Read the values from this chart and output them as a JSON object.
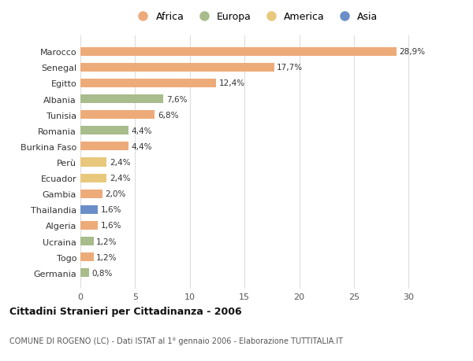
{
  "countries": [
    "Germania",
    "Togo",
    "Ucraina",
    "Algeria",
    "Thailandia",
    "Gambia",
    "Ecuador",
    "Perù",
    "Burkina Faso",
    "Romania",
    "Tunisia",
    "Albania",
    "Egitto",
    "Senegal",
    "Marocco"
  ],
  "values": [
    0.8,
    1.2,
    1.2,
    1.6,
    1.6,
    2.0,
    2.4,
    2.4,
    4.4,
    4.4,
    6.8,
    7.6,
    12.4,
    17.7,
    28.9
  ],
  "labels": [
    "0,8%",
    "1,2%",
    "1,2%",
    "1,6%",
    "1,6%",
    "2,0%",
    "2,4%",
    "2,4%",
    "4,4%",
    "4,4%",
    "6,8%",
    "7,6%",
    "12,4%",
    "17,7%",
    "28,9%"
  ],
  "continents": [
    "Europa",
    "Africa",
    "Europa",
    "Africa",
    "Asia",
    "Africa",
    "America",
    "America",
    "Africa",
    "Europa",
    "Africa",
    "Europa",
    "Africa",
    "Africa",
    "Africa"
  ],
  "colors": {
    "Africa": "#EDAB7A",
    "Europa": "#A8BC8C",
    "America": "#E8C87C",
    "Asia": "#6A8FC8"
  },
  "legend_order": [
    "Africa",
    "Europa",
    "America",
    "Asia"
  ],
  "title": "Cittadini Stranieri per Cittadinanza - 2006",
  "subtitle": "COMUNE DI ROGENO (LC) - Dati ISTAT al 1° gennaio 2006 - Elaborazione TUTTITALIA.IT",
  "xlim": [
    0,
    32
  ],
  "xticks": [
    0,
    5,
    10,
    15,
    20,
    25,
    30
  ],
  "bg_color": "#FFFFFF",
  "grid_color": "#DDDDDD",
  "bar_height": 0.55
}
